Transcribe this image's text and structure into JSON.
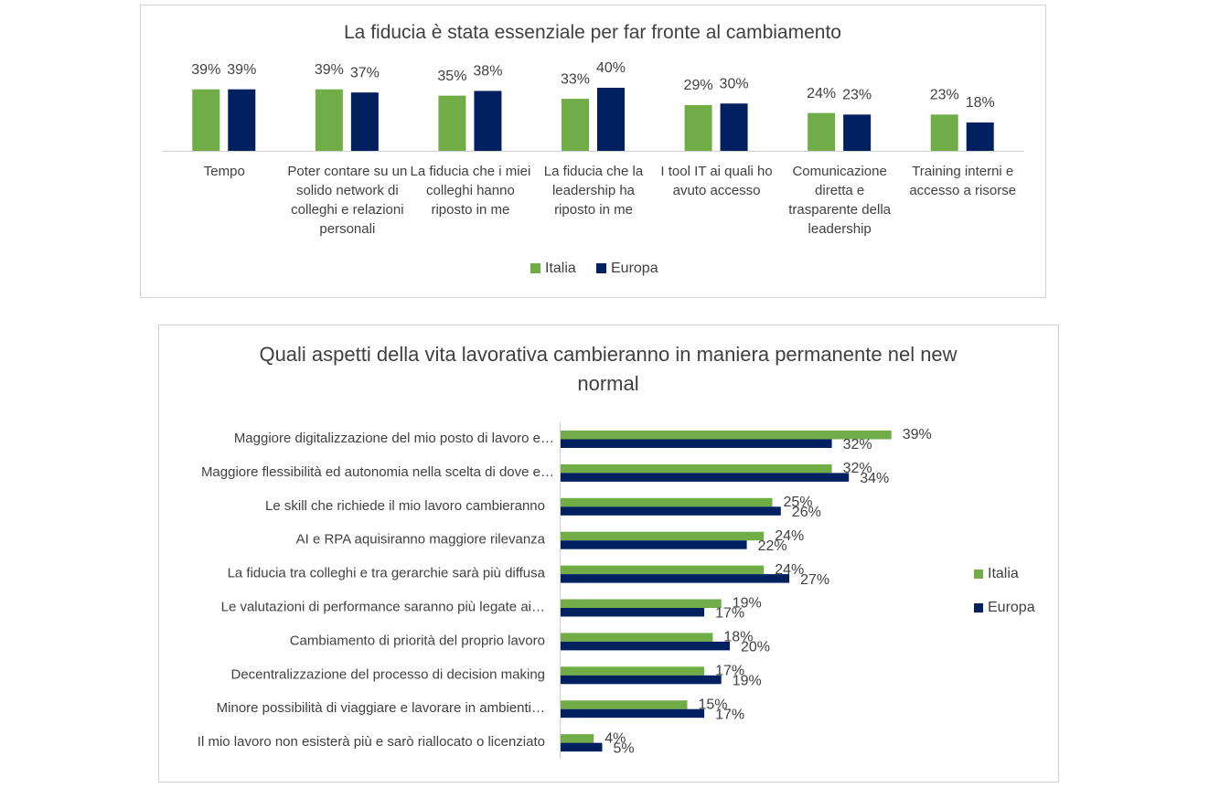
{
  "chart_data": [
    {
      "type": "bar",
      "title": "La fiducia è stata essenziale per far fronte al cambiamento",
      "categories": [
        "Tempo",
        "Poter contare su un solido network di colleghi e relazioni personali",
        "La fiducia che i miei colleghi hanno riposto in me",
        "La fiducia che la leadership ha riposto in me",
        "I tool IT ai quali ho avuto accesso",
        "Comunicazione diretta e trasparente della leadership",
        "Training interni e accesso a risorse"
      ],
      "series": [
        {
          "name": "Italia",
          "color": "#70ad47",
          "values": [
            39,
            39,
            35,
            33,
            29,
            24,
            23
          ],
          "value_labels": [
            "39%",
            "39%",
            "35%",
            "33%",
            "29%",
            "24%",
            "23%"
          ]
        },
        {
          "name": "Europa",
          "color": "#002060",
          "values": [
            39,
            37,
            38,
            40,
            30,
            23,
            18
          ],
          "value_labels": [
            "39%",
            "37%",
            "38%",
            "40%",
            "30%",
            "23%",
            "18%"
          ]
        }
      ],
      "ylim": [
        0,
        40
      ],
      "legend": "bottom"
    },
    {
      "type": "barh",
      "title": "Quali aspetti della vita lavorativa cambieranno in maniera permanente nel new normal",
      "categories": [
        "Maggiore digitalizzazione del mio posto di lavoro e…",
        "Maggiore flessibilità ed autonomia nella scelta di dove e…",
        "Le skill che richiede il mio lavoro cambieranno",
        "AI e RPA aquisiranno maggiore rilevanza",
        "La fiducia tra colleghi e tra gerarchie sarà più diffusa",
        "Le valutazioni di performance saranno più legate ai…",
        "Cambiamento di priorità del proprio lavoro",
        "Decentralizzazione del processo di decision making",
        "Minore possibilità di viaggiare e lavorare in ambienti…",
        "Il mio lavoro non esisterà più e sarò riallocato o licenziato"
      ],
      "series": [
        {
          "name": "Italia",
          "color": "#70ad47",
          "values": [
            39,
            32,
            25,
            24,
            24,
            19,
            18,
            17,
            15,
            4
          ],
          "value_labels": [
            "39%",
            "32%",
            "25%",
            "24%",
            "24%",
            "19%",
            "18%",
            "17%",
            "15%",
            "4%"
          ]
        },
        {
          "name": "Europa",
          "color": "#002060",
          "values": [
            32,
            34,
            26,
            22,
            27,
            17,
            20,
            19,
            17,
            5
          ],
          "value_labels": [
            "32%",
            "34%",
            "26%",
            "22%",
            "27%",
            "17%",
            "20%",
            "19%",
            "17%",
            "5%"
          ]
        }
      ],
      "xlim": [
        0,
        40
      ],
      "legend": "right"
    }
  ]
}
